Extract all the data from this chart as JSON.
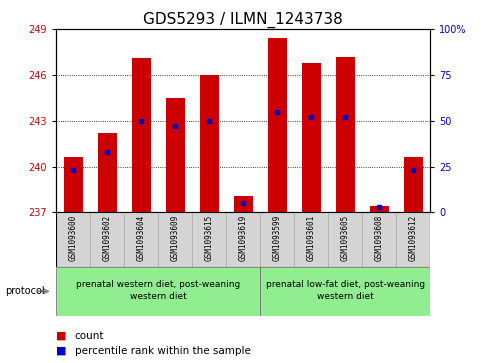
{
  "title": "GDS5293 / ILMN_1243738",
  "samples": [
    "GSM1093600",
    "GSM1093602",
    "GSM1093604",
    "GSM1093609",
    "GSM1093615",
    "GSM1093619",
    "GSM1093599",
    "GSM1093601",
    "GSM1093605",
    "GSM1093608",
    "GSM1093612"
  ],
  "count_values": [
    240.6,
    242.2,
    247.1,
    244.5,
    246.0,
    238.1,
    248.4,
    246.8,
    247.2,
    237.4,
    240.6
  ],
  "percentile_values": [
    23,
    33,
    50,
    47,
    50,
    5,
    55,
    52,
    52,
    3,
    23
  ],
  "ylim_left": [
    237,
    249
  ],
  "ylim_right": [
    0,
    100
  ],
  "yticks_left": [
    237,
    240,
    243,
    246,
    249
  ],
  "yticks_right": [
    0,
    25,
    50,
    75,
    100
  ],
  "bar_color": "#cc0000",
  "percentile_color": "#0000cc",
  "bar_bottom": 237,
  "group1_label": "prenatal western diet, post-weaning\nwestern diet",
  "group2_label": "prenatal low-fat diet, post-weaning\nwestern diet",
  "group1_indices": [
    0,
    1,
    2,
    3,
    4,
    5
  ],
  "group2_indices": [
    6,
    7,
    8,
    9,
    10
  ],
  "protocol_label": "protocol",
  "legend_count": "count",
  "legend_percentile": "percentile rank within the sample",
  "title_fontsize": 11,
  "tick_fontsize": 7,
  "sample_fontsize": 5.5,
  "group_fontsize": 6.5,
  "legend_fontsize": 7.5
}
